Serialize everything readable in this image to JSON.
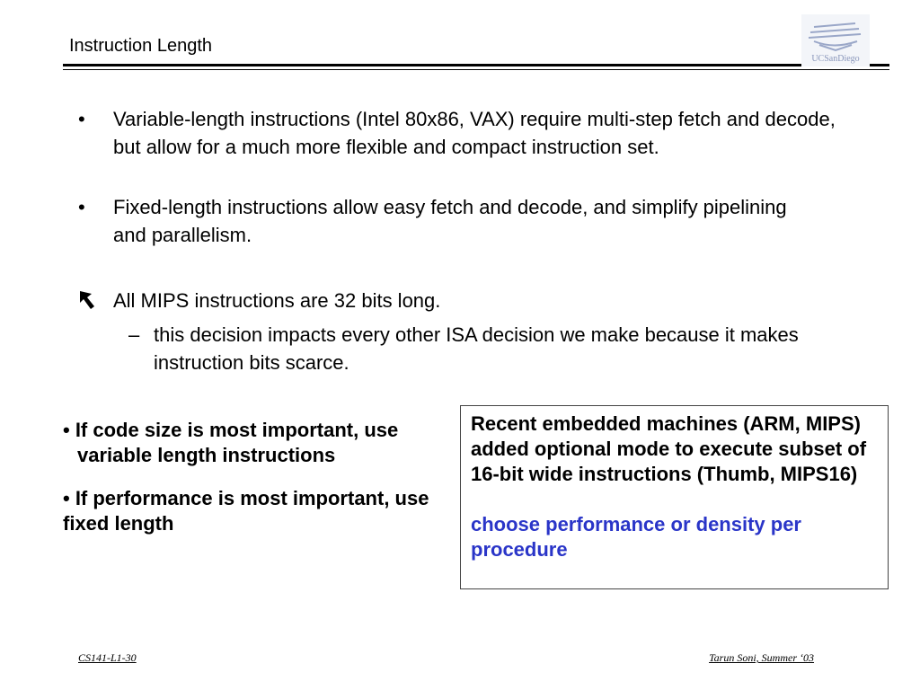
{
  "slide": {
    "title": "Instruction Length",
    "logo_text": "UCSanDiego"
  },
  "bullets": [
    {
      "marker": "•",
      "text": "Variable-length instructions (Intel 80x86, VAX) require multi-step fetch and decode, but allow for a much more flexible and compact instruction set."
    },
    {
      "marker": "•",
      "text": "Fixed-length instructions allow easy fetch and decode, and simplify pipelining and parallelism."
    },
    {
      "marker": "pointer-arrow-icon",
      "text": "All MIPS instructions are 32 bits long."
    },
    {
      "marker": "–",
      "text": "this decision impacts every other ISA decision we make because it makes instruction bits scarce."
    }
  ],
  "left_notes": {
    "note1": "• If code size is most important, use variable length instructions",
    "note2": "• If performance is most important, use fixed length"
  },
  "box": {
    "text": "Recent embedded machines (ARM, MIPS) added optional mode to execute subset of 16-bit wide instructions (Thumb, MIPS16)",
    "highlight": "choose performance or density per procedure",
    "highlight_color": "#2a35c8"
  },
  "footer": {
    "left": "CS141-L1-30",
    "right": "Tarun Soni, Summer ‘03"
  }
}
